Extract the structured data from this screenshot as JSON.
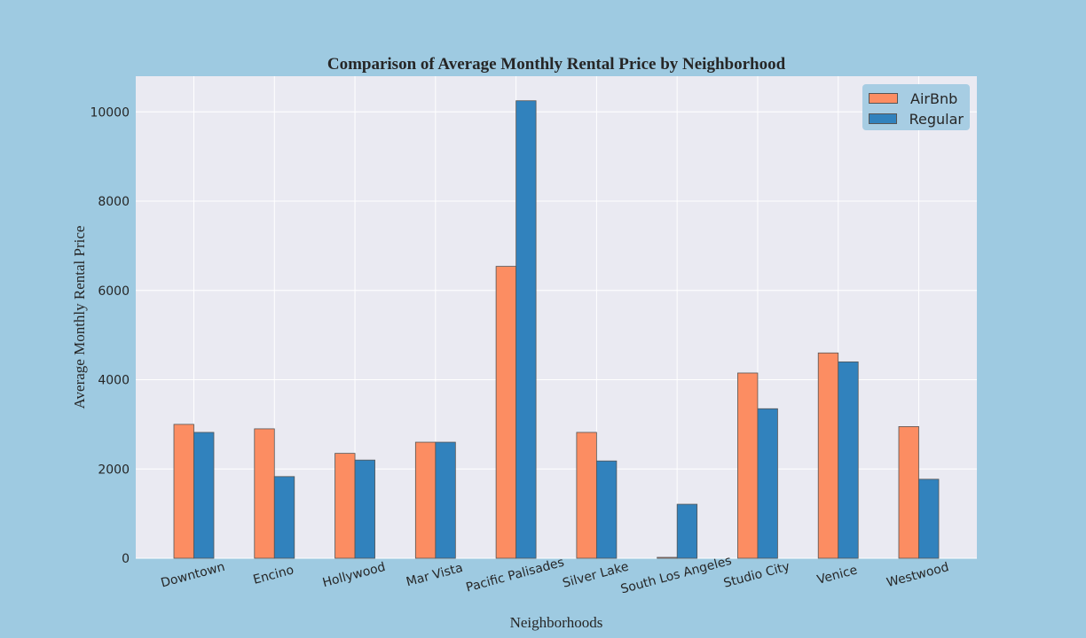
{
  "chart_data": {
    "type": "bar",
    "title": "Comparison of Average Monthly Rental Price by Neighborhood",
    "xlabel": "Neighborhoods",
    "ylabel": "Average Monthly Rental Price",
    "ylim": [
      0,
      10800
    ],
    "yticks": [
      0,
      2000,
      4000,
      6000,
      8000,
      10000
    ],
    "grid": true,
    "legend_position": "top-right",
    "categories": [
      "Downtown",
      "Encino",
      "Hollywood",
      "Mar Vista",
      "Pacific Palisades",
      "Silver Lake",
      "South Los Angeles",
      "Studio City",
      "Venice",
      "Westwood"
    ],
    "series": [
      {
        "name": "AirBnb",
        "color": "#fc8d62",
        "values": [
          3000,
          2900,
          2350,
          2600,
          6540,
          2820,
          20,
          4150,
          4600,
          2950
        ]
      },
      {
        "name": "Regular",
        "color": "#3182bd",
        "values": [
          2820,
          1830,
          2200,
          2600,
          10250,
          2180,
          1210,
          3350,
          4400,
          1770
        ]
      }
    ]
  },
  "colors": {
    "background": "#9ecae1",
    "plot_background": "#eaeaf2",
    "grid": "#ffffff"
  }
}
